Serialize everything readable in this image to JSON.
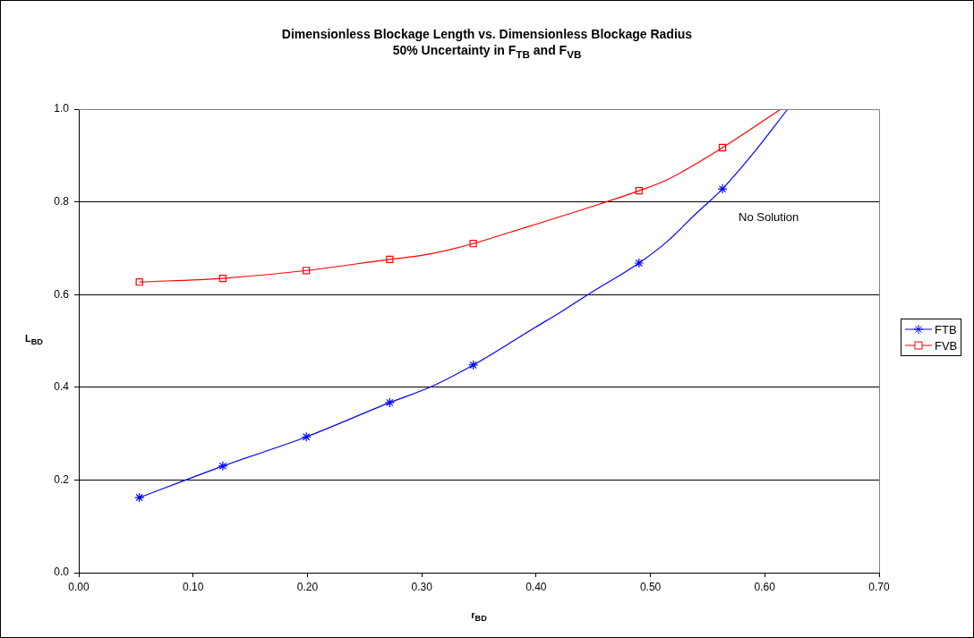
{
  "chart_data": {
    "type": "line",
    "title": "Dimensionless Blockage Length vs. Dimensionless Blockage Radius",
    "subtitle": "50% Uncertainty in F$_{TB}$ and F$_{VB}$",
    "xlabel": "r$_{BD}$",
    "ylabel": "L$_{BD}$",
    "xlim": [
      0,
      0.7
    ],
    "xticks": [
      {
        "value": 0,
        "label": "0.00"
      },
      {
        "value": 0.1,
        "label": "0.10"
      },
      {
        "value": 0.2,
        "label": "0.20"
      },
      {
        "value": 0.3,
        "label": "0.30"
      },
      {
        "value": 0.4,
        "label": "0.40"
      },
      {
        "value": 0.5,
        "label": "0.50"
      },
      {
        "value": 0.6,
        "label": "0.60"
      },
      {
        "value": 0.7,
        "label": "0.70"
      }
    ],
    "ylim": [
      0,
      1
    ],
    "yticks": [
      {
        "value": 0,
        "label": "0.0"
      },
      {
        "value": 0.2,
        "label": "0.2"
      },
      {
        "value": 0.4,
        "label": "0.4"
      },
      {
        "value": 0.6,
        "label": "0.6"
      },
      {
        "value": 0.8,
        "label": "0.8"
      },
      {
        "value": 1,
        "label": "1.0"
      }
    ],
    "grid": "y",
    "legend": "right",
    "line_style": "solid",
    "series": [
      {
        "type": "line",
        "marker": "none",
        "color": "#0000ff",
        "x": [
          0.053,
          0.126,
          0.199,
          0.272,
          0.307,
          0.345,
          0.38,
          0.399,
          0.42,
          0.446,
          0.49,
          0.514,
          0.54,
          0.563,
          0.59,
          0.62
        ],
        "values": [
          0.162,
          0.23,
          0.293,
          0.367,
          0.4,
          0.448,
          0.5,
          0.529,
          0.56,
          0.601,
          0.668,
          0.713,
          0.775,
          0.828,
          0.905,
          1.0
        ]
      },
      {
        "type": "scatter",
        "name": "FTB",
        "marker": "cross",
        "color": "#0000ff",
        "x": [
          0.053,
          0.126,
          0.199,
          0.272,
          0.345,
          0.49,
          0.563
        ],
        "values": [
          0.162,
          0.23,
          0.293,
          0.367,
          0.448,
          0.668,
          0.828
        ]
      },
      {
        "type": "line",
        "marker": "none",
        "color": "#ff0000",
        "x": [
          0.053,
          0.126,
          0.199,
          0.272,
          0.301,
          0.345,
          0.378,
          0.449,
          0.49,
          0.514,
          0.563,
          0.614
        ],
        "values": [
          0.627,
          0.635,
          0.652,
          0.676,
          0.685,
          0.71,
          0.735,
          0.79,
          0.824,
          0.847,
          0.917,
          1.0
        ]
      },
      {
        "type": "scatter",
        "name": "FVB",
        "marker": "square",
        "color": "#ff0000",
        "x": [
          0.053,
          0.126,
          0.199,
          0.272,
          0.345,
          0.49,
          0.563
        ],
        "values": [
          0.627,
          0.635,
          0.652,
          0.676,
          0.71,
          0.824,
          0.917
        ]
      }
    ],
    "annotations": [
      "No Solution"
    ]
  }
}
